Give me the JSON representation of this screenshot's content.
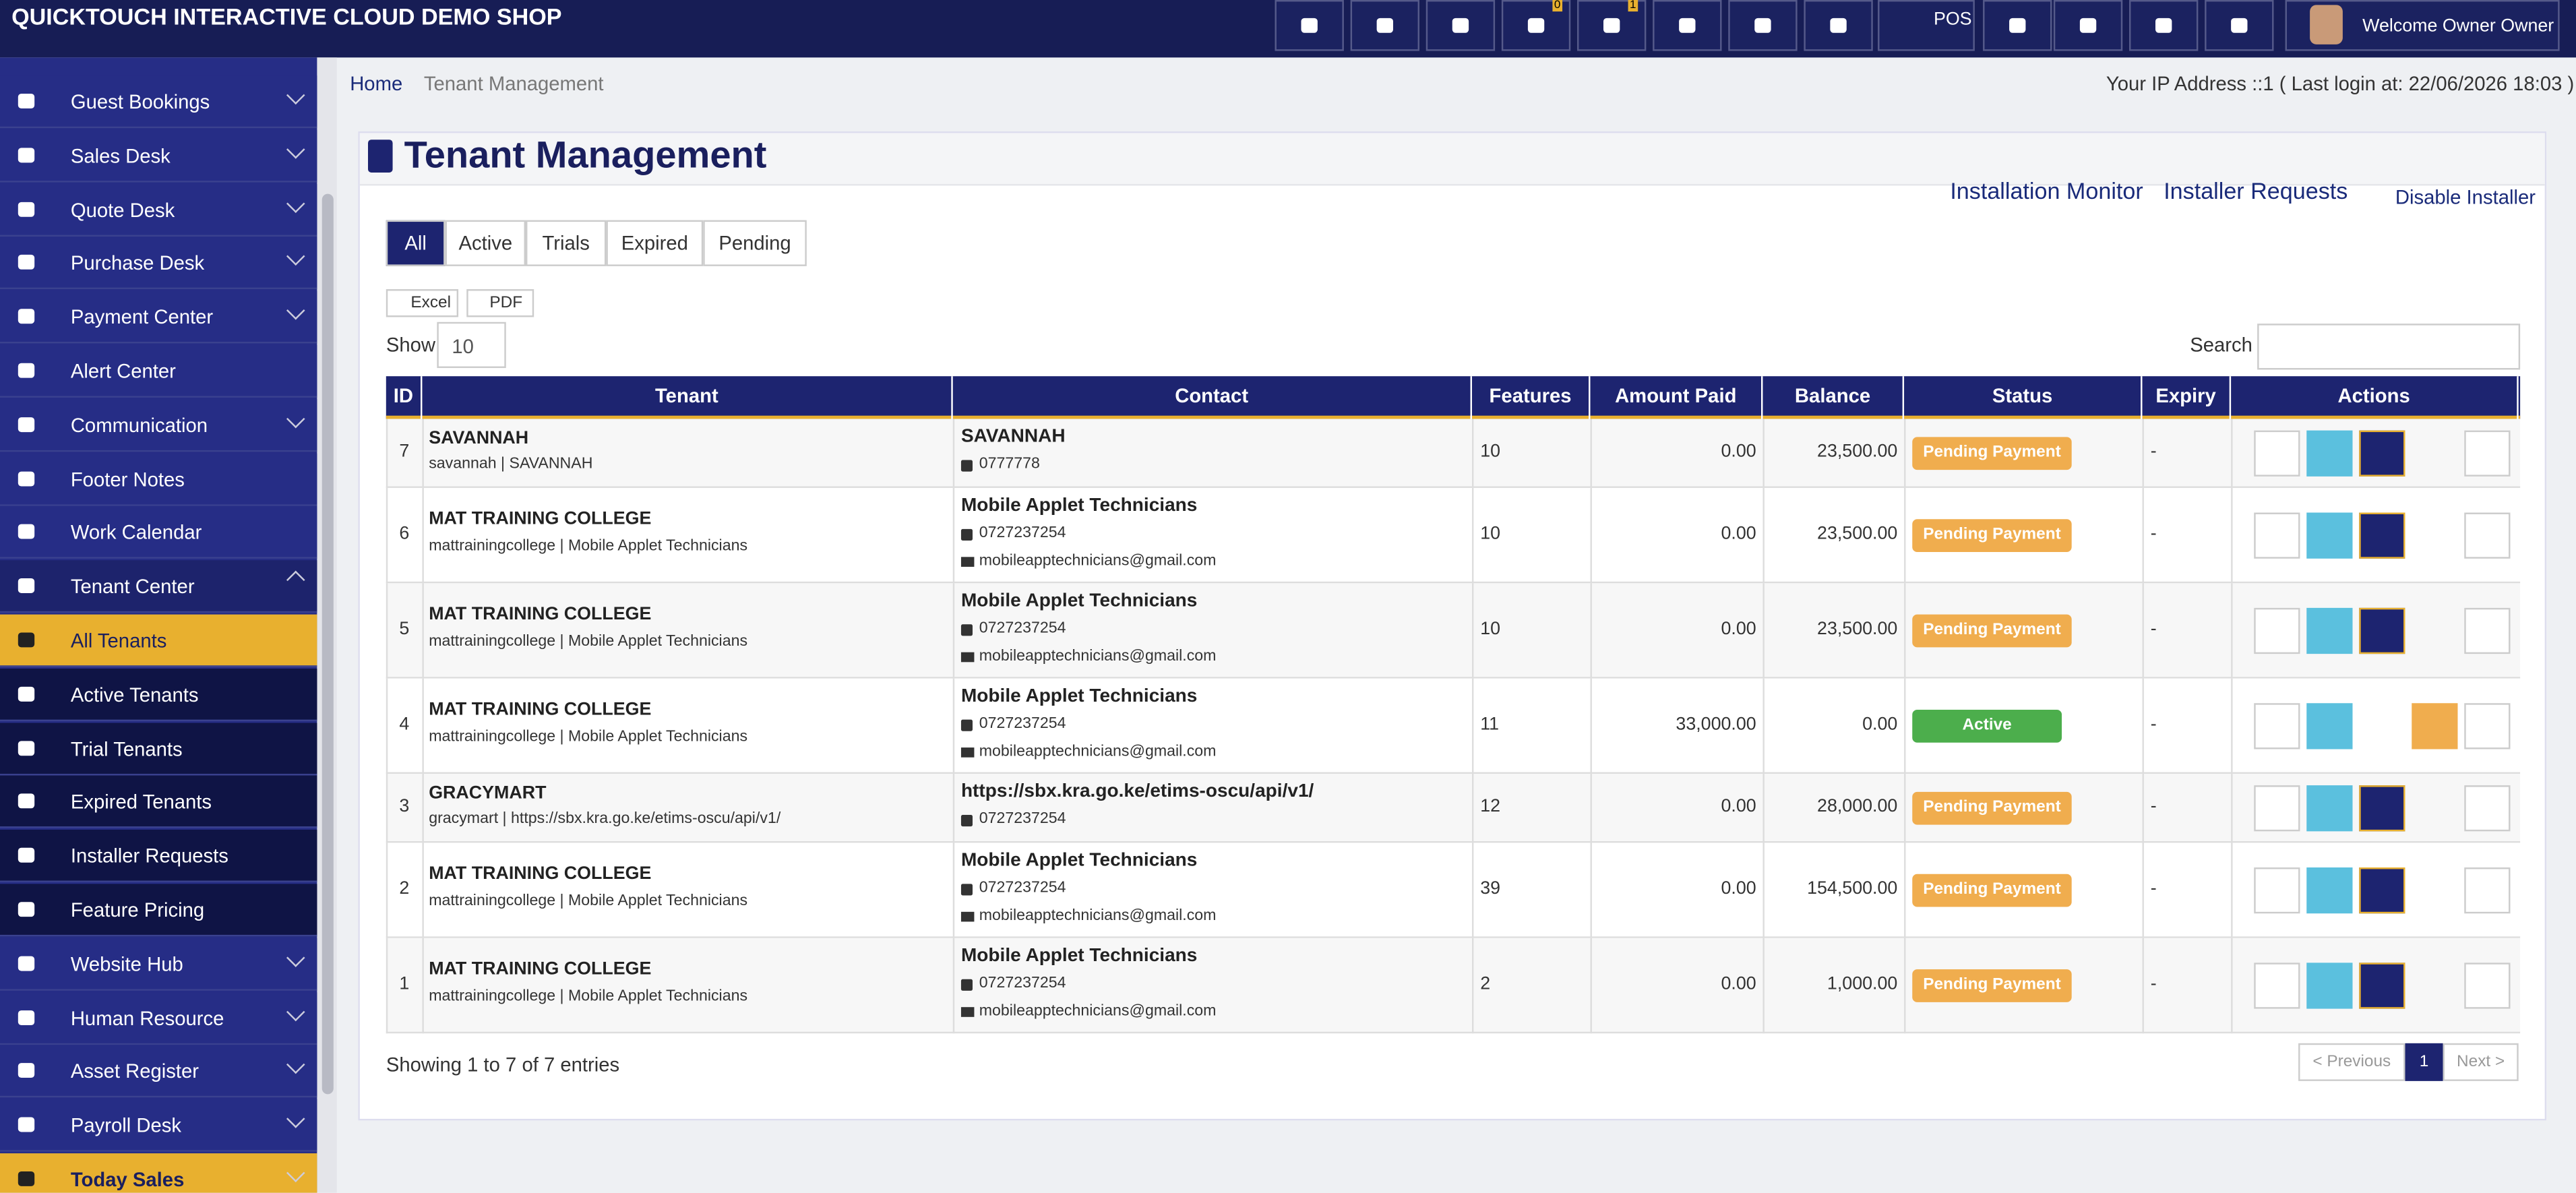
{
  "header": {
    "title": "QUICKTOUCH INTERACTIVE CLOUD DEMO SHOP",
    "badges": [
      "0",
      "1"
    ],
    "pos": "POS",
    "welcome": "Welcome Owner Owner"
  },
  "sidebar": [
    "Guest Bookings",
    "Sales Desk",
    "Quote Desk",
    "Purchase Desk",
    "Payment Center",
    "Alert Center",
    "Communication",
    "Footer Notes",
    "Work Calendar",
    "Tenant Center",
    "All Tenants",
    "Active Tenants",
    "Trial Tenants",
    "Expired Tenants",
    "Installer Requests",
    "Feature Pricing",
    "Website Hub",
    "Human Resource",
    "Asset Register",
    "Payroll Desk",
    "Today Sales"
  ],
  "breadcrumb": [
    "Home",
    "Tenant Management"
  ],
  "ip": "Your IP Address ::1 ( Last login at: 22/06/2026 18:03 )",
  "title": "Tenant Management",
  "links": [
    "Installation Monitor",
    "Installer Requests",
    "Disable Installer"
  ],
  "tabs": [
    "All",
    "Active",
    "Trials",
    "Expired",
    "Pending"
  ],
  "exports": [
    "Excel",
    "PDF"
  ],
  "show": "Show",
  "page_size": "10",
  "search": "Search",
  "table": {
    "headers": [
      "ID",
      "Tenant",
      "Contact",
      "Features",
      "Amount Paid",
      "Balance",
      "Status",
      "Expiry",
      "Actions"
    ],
    "rows": [
      {
        "id": "7",
        "name": "SAVANNAH",
        "sub": "savannah | SAVANNAH",
        "contact": "SAVANNAH",
        "phone": "0777778",
        "features": "10",
        "paid": "0.00",
        "balance": "23,500.00",
        "status": "Pending Payment",
        "expiry": "-"
      },
      {
        "id": "6",
        "name": "MAT TRAINING COLLEGE",
        "sub": "mattrainingcollege | Mobile Applet Technicians",
        "contact": "Mobile Applet Technicians",
        "phone": "0727237254",
        "email": "mobileapptechnicians@gmail.com",
        "features": "10",
        "paid": "0.00",
        "balance": "23,500.00",
        "status": "Pending Payment",
        "expiry": "-"
      },
      {
        "id": "5",
        "name": "MAT TRAINING COLLEGE",
        "sub": "mattrainingcollege | Mobile Applet Technicians",
        "contact": "Mobile Applet Technicians",
        "phone": "0727237254",
        "email": "mobileapptechnicians@gmail.com",
        "features": "10",
        "paid": "0.00",
        "balance": "23,500.00",
        "status": "Pending Payment",
        "expiry": "-"
      },
      {
        "id": "4",
        "name": "MAT TRAINING COLLEGE",
        "sub": "mattrainingcollege | Mobile Applet Technicians",
        "contact": "Mobile Applet Technicians",
        "phone": "0727237254",
        "email": "mobileapptechnicians@gmail.com",
        "features": "11",
        "paid": "33,000.00",
        "balance": "0.00",
        "status": "Active",
        "expiry": "-"
      },
      {
        "id": "3",
        "name": "GRACYMART",
        "sub": "gracymart | https://sbx.kra.go.ke/etims-oscu/api/v1/",
        "contact": "https://sbx.kra.go.ke/etims-oscu/api/v1/",
        "phone": "0727237254",
        "features": "12",
        "paid": "0.00",
        "balance": "28,000.00",
        "status": "Pending Payment",
        "expiry": "-"
      },
      {
        "id": "2",
        "name": "MAT TRAINING COLLEGE",
        "sub": "mattrainingcollege | Mobile Applet Technicians",
        "contact": "Mobile Applet Technicians",
        "phone": "0727237254",
        "email": "mobileapptechnicians@gmail.com",
        "features": "39",
        "paid": "0.00",
        "balance": "154,500.00",
        "status": "Pending Payment",
        "expiry": "-"
      },
      {
        "id": "1",
        "name": "MAT TRAINING COLLEGE",
        "sub": "mattrainingcollege | Mobile Applet Technicians",
        "contact": "Mobile Applet Technicians",
        "phone": "0727237254",
        "email": "mobileapptechnicians@gmail.com",
        "features": "2",
        "paid": "0.00",
        "balance": "1,000.00",
        "status": "Pending Payment",
        "expiry": "-"
      }
    ]
  },
  "footer": "Showing 1 to 7 of 7 entries",
  "pagination": [
    "< Previous",
    "1",
    "Next >"
  ]
}
